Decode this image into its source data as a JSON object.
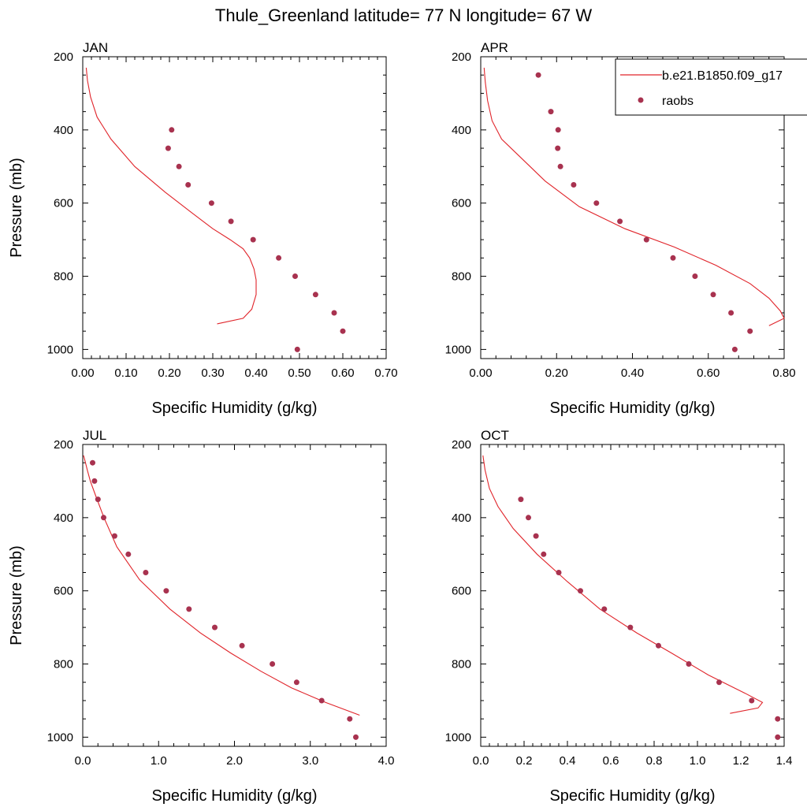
{
  "figure": {
    "title": "Thule_Greenland  latitude= 77 N longitude= 67 W"
  },
  "legend": {
    "model_label": "b.e21.B1850.f09_g17",
    "obs_label": "raobs",
    "model_color": "#e0242a",
    "obs_color": "#a8324f",
    "placement": "top-right (over APR panel, clipped at figure edge)"
  },
  "chart_data": [
    {
      "type": "line",
      "panel": "JAN",
      "xlabel": "Specific Humidity (g/kg)",
      "ylabel": "Pressure (mb)",
      "xlim": [
        0,
        0.7
      ],
      "ylim": [
        1025,
        200
      ],
      "y_inverted": true,
      "xticks": [
        "0.00",
        "0.10",
        "0.20",
        "0.30",
        "0.40",
        "0.50",
        "0.60",
        "0.70"
      ],
      "yticks": [
        "200",
        "400",
        "600",
        "800",
        "1000"
      ],
      "series": [
        {
          "name": "b.e21.B1850.f09_g17",
          "kind": "line",
          "x": [
            0.31,
            0.37,
            0.39,
            0.4,
            0.4,
            0.395,
            0.385,
            0.37,
            0.34,
            0.3,
            0.25,
            0.19,
            0.12,
            0.065,
            0.033,
            0.018,
            0.011,
            0.008
          ],
          "y": [
            930,
            915,
            890,
            850,
            810,
            780,
            750,
            725,
            700,
            670,
            625,
            570,
            500,
            425,
            365,
            310,
            265,
            230
          ]
        },
        {
          "name": "raobs",
          "kind": "scatter",
          "x": [
            0.205,
            0.197,
            0.222,
            0.243,
            0.297,
            0.342,
            0.393,
            0.452,
            0.49,
            0.537,
            0.58,
            0.6,
            0.495
          ],
          "y": [
            400,
            450,
            500,
            550,
            600,
            650,
            700,
            750,
            800,
            850,
            900,
            950,
            1000
          ]
        }
      ]
    },
    {
      "type": "line",
      "panel": "APR",
      "xlabel": "Specific Humidity (g/kg)",
      "ylabel": "",
      "xlim": [
        0,
        0.8
      ],
      "ylim": [
        1025,
        200
      ],
      "y_inverted": true,
      "xticks": [
        "0.00",
        "0.20",
        "0.40",
        "0.60",
        "0.80"
      ],
      "yticks": [
        "200",
        "400",
        "600",
        "800",
        "1000"
      ],
      "series": [
        {
          "name": "b.e21.B1850.f09_g17",
          "kind": "line",
          "x": [
            0.76,
            0.8,
            0.79,
            0.76,
            0.71,
            0.62,
            0.51,
            0.38,
            0.26,
            0.17,
            0.1,
            0.055,
            0.03,
            0.018,
            0.012,
            0.009
          ],
          "y": [
            935,
            915,
            895,
            860,
            820,
            770,
            720,
            670,
            610,
            540,
            470,
            425,
            375,
            320,
            270,
            230
          ]
        },
        {
          "name": "raobs",
          "kind": "scatter",
          "x": [
            0.152,
            0.185,
            0.204,
            0.203,
            0.21,
            0.245,
            0.305,
            0.367,
            0.437,
            0.507,
            0.565,
            0.613,
            0.66,
            0.71,
            0.67
          ],
          "y": [
            250,
            350,
            400,
            450,
            500,
            550,
            600,
            650,
            700,
            750,
            800,
            850,
            900,
            950,
            1000
          ]
        }
      ]
    },
    {
      "type": "line",
      "panel": "JUL",
      "xlabel": "Specific Humidity (g/kg)",
      "ylabel": "Pressure (mb)",
      "xlim": [
        0,
        4.0
      ],
      "ylim": [
        1025,
        200
      ],
      "y_inverted": true,
      "xticks": [
        "0.0",
        "1.0",
        "2.0",
        "3.0",
        "4.0"
      ],
      "yticks": [
        "200",
        "400",
        "600",
        "800",
        "1000"
      ],
      "series": [
        {
          "name": "b.e21.B1850.f09_g17",
          "kind": "line",
          "x": [
            3.65,
            3.2,
            2.75,
            2.35,
            1.95,
            1.55,
            1.15,
            0.75,
            0.45,
            0.28,
            0.17,
            0.1,
            0.06,
            0.03,
            0.01
          ],
          "y": [
            940,
            905,
            865,
            820,
            770,
            715,
            650,
            570,
            480,
            400,
            340,
            300,
            270,
            245,
            230
          ]
        },
        {
          "name": "raobs",
          "kind": "scatter",
          "x": [
            0.13,
            0.155,
            0.2,
            0.275,
            0.42,
            0.6,
            0.83,
            1.1,
            1.4,
            1.74,
            2.1,
            2.5,
            2.82,
            3.15,
            3.52,
            3.6
          ],
          "y": [
            250,
            300,
            350,
            400,
            450,
            500,
            550,
            600,
            650,
            700,
            750,
            800,
            850,
            900,
            950,
            1000
          ]
        }
      ]
    },
    {
      "type": "line",
      "panel": "OCT",
      "xlabel": "Specific Humidity (g/kg)",
      "ylabel": "",
      "xlim": [
        0,
        1.4
      ],
      "ylim": [
        1025,
        200
      ],
      "y_inverted": true,
      "xticks": [
        "0.0",
        "0.2",
        "0.4",
        "0.6",
        "0.8",
        "1.0",
        "1.2",
        "1.4"
      ],
      "yticks": [
        "200",
        "400",
        "600",
        "800",
        "1000"
      ],
      "series": [
        {
          "name": "b.e21.B1850.f09_g17",
          "kind": "line",
          "x": [
            1.15,
            1.28,
            1.3,
            1.22,
            1.05,
            0.88,
            0.72,
            0.55,
            0.4,
            0.26,
            0.15,
            0.08,
            0.04,
            0.02,
            0.01
          ],
          "y": [
            935,
            920,
            905,
            880,
            830,
            770,
            715,
            650,
            575,
            500,
            430,
            370,
            320,
            270,
            230
          ]
        },
        {
          "name": "raobs",
          "kind": "scatter",
          "x": [
            0.185,
            0.22,
            0.255,
            0.29,
            0.36,
            0.46,
            0.57,
            0.69,
            0.82,
            0.96,
            1.1,
            1.25,
            1.37,
            1.37
          ],
          "y": [
            350,
            400,
            450,
            500,
            550,
            600,
            650,
            700,
            750,
            800,
            850,
            900,
            950,
            1000
          ]
        }
      ]
    }
  ]
}
